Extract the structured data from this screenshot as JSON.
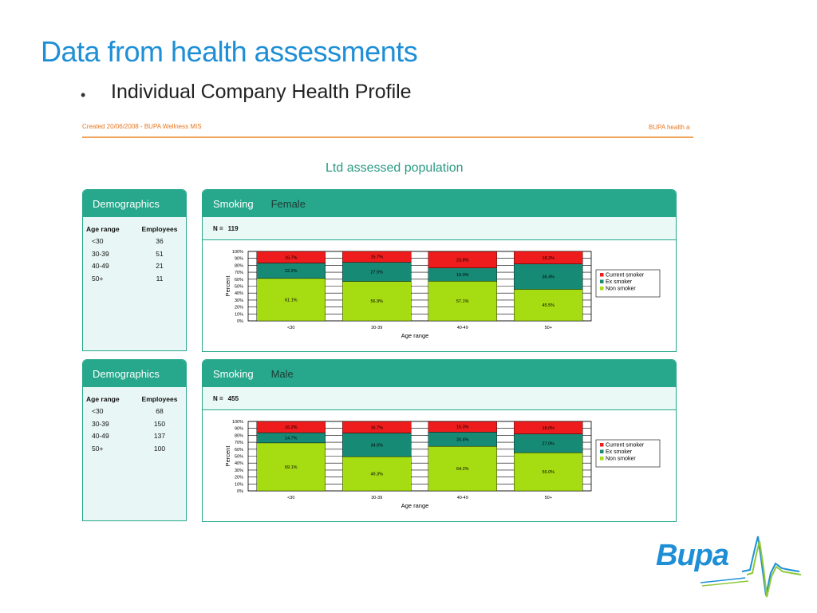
{
  "slide": {
    "title": "Data from health assessments",
    "bullet_marker": "•",
    "bullet": "Individual Company Health Profile"
  },
  "report": {
    "created": "Created 20/06/2008 - BUPA Wellness MIS",
    "header_right": "BUPA health a",
    "population_title": "Ltd assessed population"
  },
  "sections": [
    {
      "demographics": {
        "title": "Demographics",
        "columns": [
          "Age range",
          "Employees"
        ],
        "rows": [
          [
            "<30",
            "36"
          ],
          [
            "30-39",
            "51"
          ],
          [
            "40-49",
            "21"
          ],
          [
            "50+",
            "11"
          ]
        ]
      },
      "smoking": {
        "title": "Smoking",
        "subtitle": "Female",
        "n_label": "N =",
        "n_value": "119"
      }
    },
    {
      "demographics": {
        "title": "Demographics",
        "columns": [
          "Age range",
          "Employees"
        ],
        "rows": [
          [
            "<30",
            "68"
          ],
          [
            "30-39",
            "150"
          ],
          [
            "40-49",
            "137"
          ],
          [
            "50+",
            "100"
          ]
        ]
      },
      "smoking": {
        "title": "Smoking",
        "subtitle": "Male",
        "n_label": "N =",
        "n_value": "455"
      }
    }
  ],
  "chart_data": [
    {
      "type": "bar",
      "stacked": true,
      "title": "",
      "xlabel": "Age range",
      "ylabel": "Percent",
      "ylim": [
        0,
        100
      ],
      "y_ticks": [
        "0%",
        "10%",
        "20%",
        "30%",
        "40%",
        "50%",
        "60%",
        "70%",
        "80%",
        "90%",
        "100%"
      ],
      "categories": [
        "<30",
        "30-39",
        "40-49",
        "50+"
      ],
      "series": [
        {
          "name": "Non smoker",
          "color": "#a6dd12",
          "values": [
            61.1,
            56.9,
            57.1,
            45.5
          ],
          "labels": [
            "61.1%",
            "56.9%",
            "57.1%",
            "45.5%"
          ]
        },
        {
          "name": "Ex smoker",
          "color": "#178a76",
          "values": [
            22.2,
            27.5,
            19.0,
            36.4
          ],
          "labels": [
            "22.2%",
            "27.5%",
            "19.0%",
            "36.4%"
          ]
        },
        {
          "name": "Current smoker",
          "color": "#ee1c1c",
          "values": [
            16.7,
            15.7,
            23.8,
            18.2
          ],
          "labels": [
            "16.7%",
            "15.7%",
            "23.8%",
            "18.2%"
          ]
        }
      ],
      "legend": "right",
      "grid": true
    },
    {
      "type": "bar",
      "stacked": true,
      "title": "",
      "xlabel": "Age range",
      "ylabel": "Percent",
      "ylim": [
        0,
        100
      ],
      "y_ticks": [
        "0%",
        "10%",
        "20%",
        "30%",
        "40%",
        "50%",
        "60%",
        "70%",
        "80%",
        "90%",
        "100%"
      ],
      "categories": [
        "<30",
        "30-39",
        "40-49",
        "50+"
      ],
      "series": [
        {
          "name": "Non smoker",
          "color": "#a6dd12",
          "values": [
            69.1,
            49.3,
            64.2,
            55.0
          ],
          "labels": [
            "69.1%",
            "49.3%",
            "64.2%",
            "55.0%"
          ]
        },
        {
          "name": "Ex smoker",
          "color": "#178a76",
          "values": [
            14.7,
            34.0,
            20.4,
            27.0
          ],
          "labels": [
            "14.7%",
            "34.0%",
            "20.4%",
            "27.0%"
          ]
        },
        {
          "name": "Current smoker",
          "color": "#ee1c1c",
          "values": [
            16.2,
            16.7,
            15.3,
            18.0
          ],
          "labels": [
            "16.2%",
            "16.7%",
            "15.3%",
            "18.0%"
          ]
        }
      ],
      "legend": "right",
      "grid": true
    }
  ],
  "logo": {
    "text": "Bupa"
  },
  "colors": {
    "accent": "#27a88c",
    "brand_blue": "#1e8fd6",
    "orange": "#e87722"
  }
}
